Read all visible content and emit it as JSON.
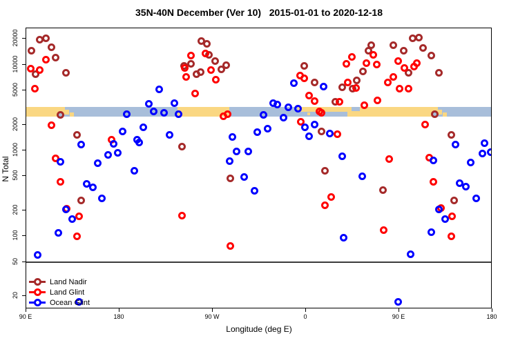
{
  "page": {
    "title": "35N-40N December (Ver 10)   2015-01-01 to 2020-12-18"
  },
  "chart_data": {
    "type": "scatter",
    "title": "35N-40N December (Ver 10)   2015-01-01 to 2020-12-18",
    "xlabel": "Longitude (deg E)",
    "ylabel": "N Total",
    "x_axis": {
      "note": "longitude axis wraps: 90E to 180 to 90W to 0 to 90E to 180, stored as 90..540 continuous degrees",
      "range": [
        90,
        540
      ],
      "ticks": [
        {
          "v": 90,
          "label": "90 E"
        },
        {
          "v": 180,
          "label": "180"
        },
        {
          "v": 270,
          "label": "90 W"
        },
        {
          "v": 360,
          "label": "0"
        },
        {
          "v": 450,
          "label": "90 E"
        },
        {
          "v": 540,
          "label": "180"
        }
      ]
    },
    "y_axis": {
      "scale": "log",
      "range": [
        14.1,
        26500
      ],
      "ticks": [
        20,
        50,
        100,
        200,
        500,
        1000,
        2000,
        5000,
        10000,
        20000
      ]
    },
    "reference_line": {
      "y_value": 50,
      "color": "#3a3a3a"
    },
    "map_band": {
      "description": "land/ocean geography strip for latitude band 35N-40N",
      "y_range": [
        2480,
        3215
      ],
      "colors": {
        "land": "#FAD782",
        "ocean": "#A8BEDA"
      },
      "rects": [
        [
          90,
          121,
          0,
          1,
          "land"
        ],
        [
          121,
          141,
          0,
          1,
          "ocean"
        ],
        [
          121,
          127,
          0,
          0.55,
          "land"
        ],
        [
          126,
          131,
          0.3,
          0.8,
          "land"
        ],
        [
          132,
          136,
          0.55,
          1,
          "land"
        ],
        [
          141,
          236,
          0,
          1,
          "ocean"
        ],
        [
          236,
          286,
          0,
          1,
          "land"
        ],
        [
          286,
          352,
          0,
          1,
          "ocean"
        ],
        [
          352,
          400,
          0,
          1,
          "ocean"
        ],
        [
          352,
          400,
          0,
          0.5,
          "land"
        ],
        [
          361,
          364,
          0.55,
          0.85,
          "land"
        ],
        [
          372,
          375,
          0.5,
          0.8,
          "land"
        ],
        [
          400,
          481,
          0,
          1,
          "land"
        ],
        [
          404,
          412,
          0,
          0.45,
          "ocean"
        ],
        [
          481,
          501,
          0,
          1,
          "ocean"
        ],
        [
          481,
          487,
          0,
          0.55,
          "land"
        ],
        [
          486,
          491,
          0.3,
          0.8,
          "land"
        ],
        [
          492,
          496,
          0.55,
          1,
          "land"
        ],
        [
          501,
          540,
          0,
          1,
          "ocean"
        ]
      ]
    },
    "legend": {
      "position": "bottom-left",
      "items": [
        {
          "label": "Land Nadir",
          "color": "#A52A2A"
        },
        {
          "label": "Land Glint",
          "color": "#FF0000"
        },
        {
          "label": "Ocean Glint",
          "color": "#0000FF"
        }
      ]
    },
    "series": [
      {
        "name": "Land Nadir",
        "color": "#A52A2A",
        "points": [
          [
            103,
            19600
          ],
          [
            109,
            20400
          ],
          [
            114,
            15900
          ],
          [
            95,
            14400
          ],
          [
            118,
            12000
          ],
          [
            99,
            7780
          ],
          [
            128,
            8070
          ],
          [
            123,
            2590
          ],
          [
            139,
            1520
          ],
          [
            242,
            9600
          ],
          [
            259,
            18900
          ],
          [
            264,
            17500
          ],
          [
            266,
            13100
          ],
          [
            272,
            11000
          ],
          [
            278,
            8740
          ],
          [
            283,
            9780
          ],
          [
            254,
            7740
          ],
          [
            258,
            8180
          ],
          [
            249,
            10200
          ],
          [
            358,
            9600
          ],
          [
            368,
            6150
          ],
          [
            388,
            3690
          ],
          [
            375,
            1650
          ],
          [
            395,
            5410
          ],
          [
            143,
            261
          ],
          [
            240,
            1110
          ],
          [
            287,
            472
          ],
          [
            378,
            575
          ],
          [
            434,
            344
          ],
          [
            503,
            261
          ],
          [
            415,
            8390
          ],
          [
            420,
            14400
          ],
          [
            423,
            16800
          ],
          [
            444,
            16900
          ],
          [
            454,
            14500
          ],
          [
            459,
            7980
          ],
          [
            463,
            20400
          ],
          [
            469,
            20800
          ],
          [
            473,
            15700
          ],
          [
            488,
            7980
          ],
          [
            481,
            12700
          ],
          [
            484,
            2620
          ],
          [
            500,
            1510
          ],
          [
            409,
            6550
          ],
          [
            405,
            5250
          ]
        ]
      },
      {
        "name": "Land Glint",
        "color": "#FF0000",
        "points": [
          [
            94,
            8990
          ],
          [
            103,
            8710
          ],
          [
            109,
            11500
          ],
          [
            98,
            5250
          ],
          [
            114,
            1950
          ],
          [
            172,
            1330
          ],
          [
            118,
            809
          ],
          [
            123,
            431
          ],
          [
            129,
            210
          ],
          [
            141,
            169
          ],
          [
            139,
            99
          ],
          [
            240,
            173
          ],
          [
            249,
            12800
          ],
          [
            263,
            13400
          ],
          [
            268,
            8600
          ],
          [
            243,
            9150
          ],
          [
            244,
            7140
          ],
          [
            253,
            4580
          ],
          [
            273,
            6620
          ],
          [
            280,
            2500
          ],
          [
            284,
            2620
          ],
          [
            354,
            7500
          ],
          [
            358,
            6970
          ],
          [
            363,
            4360
          ],
          [
            368,
            3760
          ],
          [
            355,
            2160
          ],
          [
            373,
            2830
          ],
          [
            375,
            2760
          ],
          [
            287,
            77
          ],
          [
            384,
            288
          ],
          [
            378,
            227
          ],
          [
            404,
            12300
          ],
          [
            399,
            10200
          ],
          [
            418,
            10400
          ],
          [
            428,
            10100
          ],
          [
            425,
            13100
          ],
          [
            467,
            10400
          ],
          [
            449,
            10900
          ],
          [
            455,
            9160
          ],
          [
            464,
            9500
          ],
          [
            444,
            7140
          ],
          [
            439,
            6240
          ],
          [
            400,
            6240
          ],
          [
            408,
            5350
          ],
          [
            450,
            5250
          ],
          [
            459,
            5250
          ],
          [
            392,
            3690
          ],
          [
            416,
            3370
          ],
          [
            429,
            3850
          ],
          [
            475,
            1990
          ],
          [
            390,
            1550
          ],
          [
            440,
            794
          ],
          [
            479,
            817
          ],
          [
            483,
            431
          ],
          [
            490,
            214
          ],
          [
            501,
            171
          ],
          [
            435,
            117
          ],
          [
            500,
            100
          ]
        ]
      },
      {
        "name": "Ocean Glint",
        "color": "#0000FF",
        "points": [
          [
            218,
            5120
          ],
          [
            208,
            3470
          ],
          [
            213,
            2830
          ],
          [
            223,
            2760
          ],
          [
            233,
            3570
          ],
          [
            237,
            2660
          ],
          [
            187,
            2620
          ],
          [
            183,
            1650
          ],
          [
            203,
            1870
          ],
          [
            197,
            1330
          ],
          [
            228,
            1510
          ],
          [
            143,
            1160
          ],
          [
            174,
            1180
          ],
          [
            199,
            1240
          ],
          [
            123,
            736
          ],
          [
            169,
            887
          ],
          [
            178,
            942
          ],
          [
            159,
            705
          ],
          [
            194,
            575
          ],
          [
            148,
            409
          ],
          [
            154,
            373
          ],
          [
            163,
            274
          ],
          [
            128,
            204
          ],
          [
            134,
            157
          ],
          [
            121,
            110
          ],
          [
            101,
            60
          ],
          [
            141,
            17
          ],
          [
            449,
            17
          ],
          [
            293,
            973
          ],
          [
            304,
            973
          ],
          [
            286,
            750
          ],
          [
            300,
            487
          ],
          [
            310,
            340
          ],
          [
            328,
            3570
          ],
          [
            332,
            3400
          ],
          [
            343,
            3200
          ],
          [
            352,
            3070
          ],
          [
            319,
            2590
          ],
          [
            338,
            2390
          ],
          [
            348,
            6040
          ],
          [
            377,
            5580
          ],
          [
            359,
            1870
          ],
          [
            368,
            1990
          ],
          [
            313,
            1620
          ],
          [
            323,
            1790
          ],
          [
            363,
            1460
          ],
          [
            383,
            1580
          ],
          [
            289,
            1440
          ],
          [
            395,
            847
          ],
          [
            483,
            769
          ],
          [
            504,
            1160
          ],
          [
            532,
            1220
          ],
          [
            530,
            925
          ],
          [
            538,
            955
          ],
          [
            519,
            723
          ],
          [
            414,
            499
          ],
          [
            508,
            415
          ],
          [
            514,
            380
          ],
          [
            524,
            277
          ],
          [
            488,
            204
          ],
          [
            494,
            157
          ],
          [
            396,
            96
          ],
          [
            481,
            112
          ],
          [
            461,
            61
          ]
        ]
      }
    ]
  }
}
